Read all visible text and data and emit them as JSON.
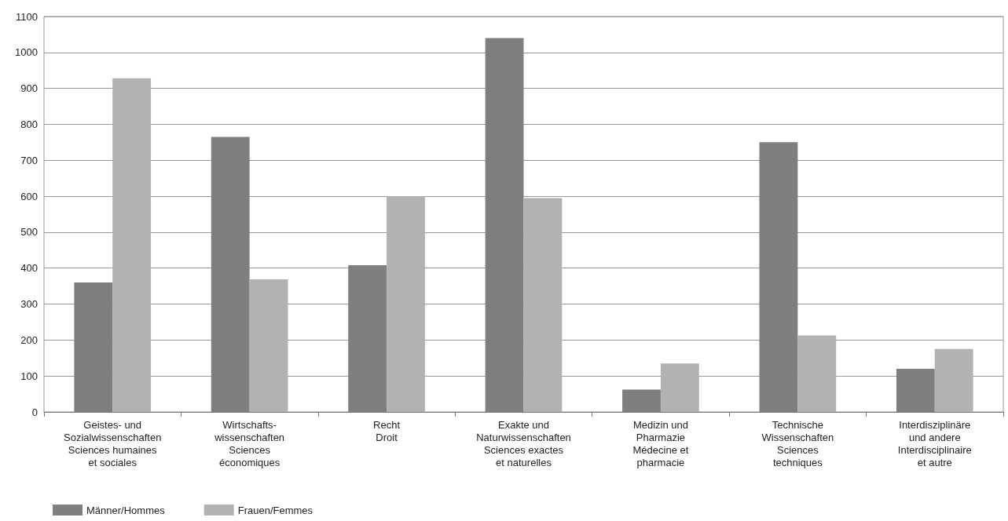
{
  "chart_data": {
    "type": "bar",
    "categories": [
      "Geistes- und\nSozialwissenschaften\nSciences humaines\net sociales",
      "Wirtschafts-\nwissenschaften\nSciences\néconomiques",
      "Recht\nDroit",
      "Exakte und\nNaturwissenschaften\nSciences exactes\net naturelles",
      "Medizin und\nPharmazie\nMédecine et\npharmacie",
      "Technische\nWissenschaften\nSciences\ntechniques",
      "Interdisziplinäre\nund andere\nInterdisciplinaire\net autre"
    ],
    "series": [
      {
        "name": "Männer/Hommes",
        "color": "#7f7f7f",
        "values": [
          360,
          765,
          408,
          1040,
          62,
          750,
          120
        ]
      },
      {
        "name": "Frauen/Femmes",
        "color": "#b2b2b2",
        "values": [
          928,
          369,
          600,
          595,
          135,
          213,
          175
        ]
      }
    ],
    "ylim": [
      0,
      1100
    ],
    "yticks": [
      0,
      100,
      200,
      300,
      400,
      500,
      600,
      700,
      800,
      900,
      1000,
      1100
    ],
    "grid": "y",
    "legend": "bottom left"
  }
}
